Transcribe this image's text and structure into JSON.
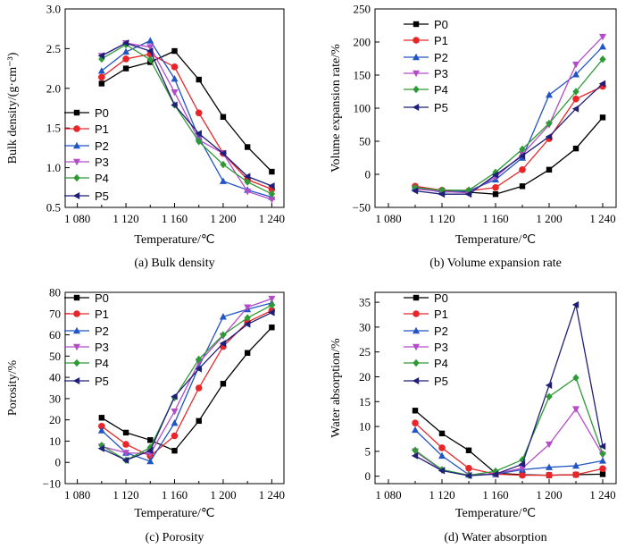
{
  "colors": {
    "P0": "#000000",
    "P1": "#e8262a",
    "P2": "#2255c4",
    "P3": "#b44cc8",
    "P4": "#2e9a36",
    "P5": "#1f1f78"
  },
  "markers": {
    "P0": "square",
    "P1": "circle",
    "P2": "triangle-up",
    "P3": "triangle-down",
    "P4": "diamond",
    "P5": "triangle-left"
  },
  "chart_data": [
    {
      "type": "line",
      "caption": "(a) Bulk density",
      "xlabel": "Temperature/℃",
      "ylabel": "Bulk density/(g·cm⁻³)",
      "xlim": [
        1070,
        1250
      ],
      "ylim": [
        0.5,
        3.0
      ],
      "xticks": [
        1080,
        1120,
        1160,
        1200,
        1240
      ],
      "xtick_labels": [
        "1 080",
        "1 120",
        "1 160",
        "1 200",
        "1 240"
      ],
      "yticks": [
        0.5,
        1.0,
        1.5,
        2.0,
        2.5,
        3.0
      ],
      "ytick_labels": [
        "0.5",
        "1.0",
        "1.5",
        "2.0",
        "2.5",
        "3.0"
      ],
      "legend_position": "bottom-left",
      "x": [
        1100,
        1120,
        1140,
        1160,
        1180,
        1200,
        1220,
        1240
      ],
      "series": [
        {
          "name": "P0",
          "values": [
            2.06,
            2.25,
            2.33,
            2.47,
            2.11,
            1.64,
            1.26,
            0.95
          ]
        },
        {
          "name": "P1",
          "values": [
            2.14,
            2.37,
            2.43,
            2.27,
            1.69,
            1.18,
            0.85,
            0.73
          ]
        },
        {
          "name": "P2",
          "values": [
            2.22,
            2.46,
            2.6,
            2.12,
            1.38,
            0.83,
            0.72,
            0.63
          ]
        },
        {
          "name": "P3",
          "values": [
            2.41,
            2.57,
            2.52,
            1.95,
            1.35,
            1.18,
            0.7,
            0.6
          ]
        },
        {
          "name": "P4",
          "values": [
            2.37,
            2.55,
            2.36,
            1.79,
            1.33,
            1.04,
            0.82,
            0.67
          ]
        },
        {
          "name": "P5",
          "values": [
            2.41,
            2.57,
            2.47,
            1.79,
            1.43,
            1.18,
            0.89,
            0.77
          ]
        }
      ]
    },
    {
      "type": "line",
      "caption": "(b) Volume expansion rate",
      "xlabel": "Temperature/℃",
      "ylabel": "Volume expansion rate/%",
      "xlim": [
        1070,
        1250
      ],
      "ylim": [
        -50,
        250
      ],
      "xticks": [
        1080,
        1120,
        1160,
        1200,
        1240
      ],
      "xtick_labels": [
        "1 080",
        "1 120",
        "1 160",
        "1 200",
        "1 240"
      ],
      "yticks": [
        -50,
        0,
        50,
        100,
        150,
        200,
        250
      ],
      "ytick_labels": [
        "−50",
        "0",
        "50",
        "100",
        "150",
        "200",
        "250"
      ],
      "legend_position": "top-left",
      "x": [
        1100,
        1120,
        1140,
        1160,
        1180,
        1200,
        1220,
        1240
      ],
      "series": [
        {
          "name": "P0",
          "values": [
            -19,
            -25,
            -27,
            -30,
            -18,
            7,
            39,
            86
          ]
        },
        {
          "name": "P1",
          "values": [
            -18,
            -24,
            -25,
            -20,
            7,
            54,
            114,
            133
          ]
        },
        {
          "name": "P2",
          "values": [
            -20,
            -27,
            -25,
            -8,
            25,
            120,
            151,
            193
          ]
        },
        {
          "name": "P3",
          "values": [
            -22,
            -26,
            -28,
            -4,
            30,
            75,
            166,
            208
          ]
        },
        {
          "name": "P4",
          "values": [
            -20,
            -24,
            -24,
            3,
            38,
            77,
            125,
            174
          ]
        },
        {
          "name": "P5",
          "values": [
            -25,
            -30,
            -30,
            -1,
            28,
            57,
            99,
            137
          ]
        }
      ]
    },
    {
      "type": "line",
      "caption": "(c) Porosity",
      "xlabel": "Temperature/℃",
      "ylabel": "Porosity/%",
      "xlim": [
        1070,
        1250
      ],
      "ylim": [
        -10,
        80
      ],
      "xticks": [
        1080,
        1120,
        1160,
        1200,
        1240
      ],
      "xtick_labels": [
        "1 080",
        "1 120",
        "1 160",
        "1 200",
        "1 240"
      ],
      "yticks": [
        -10,
        0,
        10,
        20,
        30,
        40,
        50,
        60,
        70,
        80
      ],
      "ytick_labels": [
        "−10",
        "0",
        "10",
        "20",
        "30",
        "40",
        "50",
        "60",
        "70",
        "80"
      ],
      "legend_position": "top-left",
      "x": [
        1100,
        1120,
        1140,
        1160,
        1180,
        1200,
        1220,
        1240
      ],
      "series": [
        {
          "name": "P0",
          "values": [
            21,
            14,
            10.5,
            5.5,
            19.5,
            37,
            51.5,
            63.5
          ]
        },
        {
          "name": "P1",
          "values": [
            17,
            8.5,
            3,
            12.5,
            35,
            54.5,
            66,
            71.5
          ]
        },
        {
          "name": "P2",
          "values": [
            15,
            4.5,
            0.5,
            18.5,
            45,
            68.5,
            72,
            75
          ]
        },
        {
          "name": "P3",
          "values": [
            7.5,
            4.5,
            4,
            24,
            47,
            59.5,
            73,
            77
          ]
        },
        {
          "name": "P4",
          "values": [
            8,
            1,
            7,
            30.5,
            48.5,
            60,
            68,
            74
          ]
        },
        {
          "name": "P5",
          "values": [
            6.5,
            1,
            5.5,
            31,
            44,
            56,
            65,
            70.5
          ]
        }
      ]
    },
    {
      "type": "line",
      "caption": "(d) Water absorption",
      "xlabel": "Temperature/℃",
      "ylabel": "Water absorption/%",
      "xlim": [
        1070,
        1250
      ],
      "ylim": [
        -1.5,
        37
      ],
      "xticks": [
        1080,
        1120,
        1160,
        1200,
        1240
      ],
      "xtick_labels": [
        "1 080",
        "1 120",
        "1 160",
        "1 200",
        "1 240"
      ],
      "yticks": [
        0,
        5,
        10,
        15,
        20,
        25,
        30,
        35
      ],
      "ytick_labels": [
        "0",
        "5",
        "10",
        "15",
        "20",
        "25",
        "30",
        "35"
      ],
      "legend_position": "top-left",
      "x": [
        1100,
        1120,
        1140,
        1160,
        1180,
        1200,
        1220,
        1240
      ],
      "series": [
        {
          "name": "P0",
          "values": [
            13.2,
            8.6,
            5.2,
            0.6,
            0.3,
            0.2,
            0.3,
            0.4
          ]
        },
        {
          "name": "P1",
          "values": [
            10.7,
            5.7,
            1.6,
            0.4,
            0.2,
            0.2,
            0.3,
            1.5
          ]
        },
        {
          "name": "P2",
          "values": [
            9.3,
            4.1,
            0.3,
            0.4,
            1.3,
            1.8,
            2.1,
            3.1
          ]
        },
        {
          "name": "P3",
          "values": [
            5.0,
            1.2,
            0.2,
            0.5,
            1.6,
            6.4,
            13.5,
            4.3
          ]
        },
        {
          "name": "P4",
          "values": [
            5.2,
            1.3,
            0.2,
            1.0,
            3.3,
            16.0,
            19.8,
            4.5
          ]
        },
        {
          "name": "P5",
          "values": [
            4.1,
            1.1,
            0.1,
            0.4,
            2.4,
            18.3,
            34.5,
            6.0
          ]
        }
      ]
    }
  ]
}
